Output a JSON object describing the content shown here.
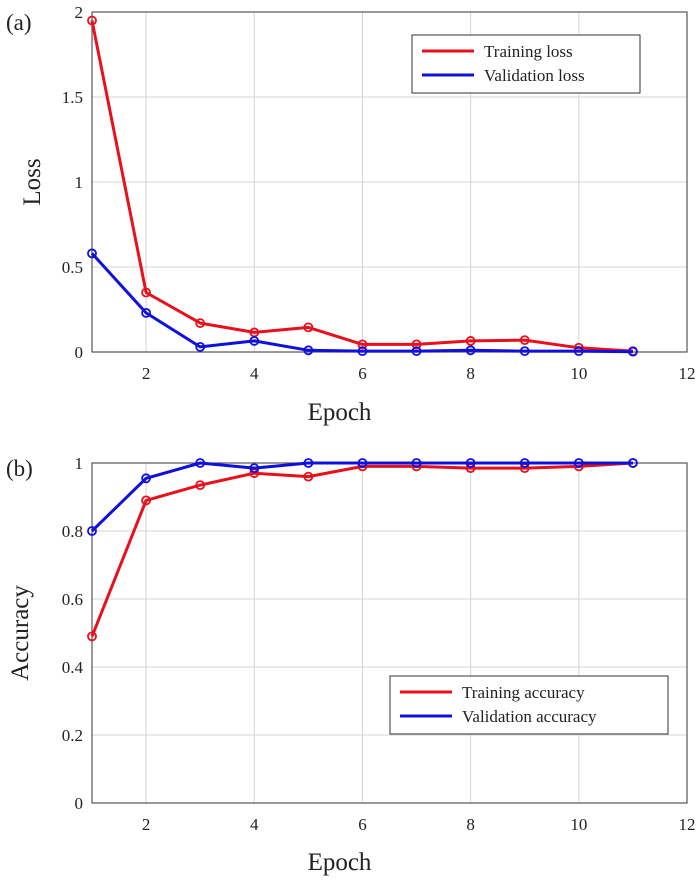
{
  "chart_data": [
    {
      "type": "line",
      "panel_label": "(a)",
      "xlabel": "Epoch",
      "ylabel": "Loss",
      "xlim": [
        1,
        12
      ],
      "ylim": [
        0,
        2
      ],
      "x_ticks": [
        "2",
        "4",
        "6",
        "8",
        "10",
        "12"
      ],
      "y_ticks": [
        "0",
        "0.5",
        "1",
        "1.5",
        "2"
      ],
      "grid": true,
      "legend_position": "top-right",
      "x": [
        1,
        2,
        3,
        4,
        5,
        6,
        7,
        8,
        9,
        10,
        11
      ],
      "series": [
        {
          "name": "Training loss",
          "color": "#e8101c",
          "values": [
            1.95,
            0.35,
            0.17,
            0.115,
            0.145,
            0.045,
            0.045,
            0.065,
            0.07,
            0.025,
            0.005
          ]
        },
        {
          "name": "Validation loss",
          "color": "#1010dd",
          "values": [
            0.58,
            0.23,
            0.03,
            0.065,
            0.01,
            0.005,
            0.005,
            0.01,
            0.005,
            0.005,
            0.002
          ]
        }
      ]
    },
    {
      "type": "line",
      "panel_label": "(b)",
      "xlabel": "Epoch",
      "ylabel": "Accuracy",
      "xlim": [
        1,
        12
      ],
      "ylim": [
        0,
        1
      ],
      "x_ticks": [
        "2",
        "4",
        "6",
        "8",
        "10",
        "12"
      ],
      "y_ticks": [
        "0",
        "0.2",
        "0.4",
        "0.6",
        "0.8",
        "1"
      ],
      "grid": true,
      "legend_position": "bottom-right",
      "x": [
        1,
        2,
        3,
        4,
        5,
        6,
        7,
        8,
        9,
        10,
        11
      ],
      "series": [
        {
          "name": "Training accuracy",
          "color": "#e8101c",
          "values": [
            0.49,
            0.89,
            0.935,
            0.97,
            0.96,
            0.99,
            0.99,
            0.985,
            0.985,
            0.99,
            1.0
          ]
        },
        {
          "name": "Validation accuracy",
          "color": "#1010dd",
          "values": [
            0.8,
            0.955,
            1.0,
            0.985,
            1.0,
            1.0,
            1.0,
            1.0,
            1.0,
            1.0,
            1.0
          ]
        }
      ]
    }
  ]
}
